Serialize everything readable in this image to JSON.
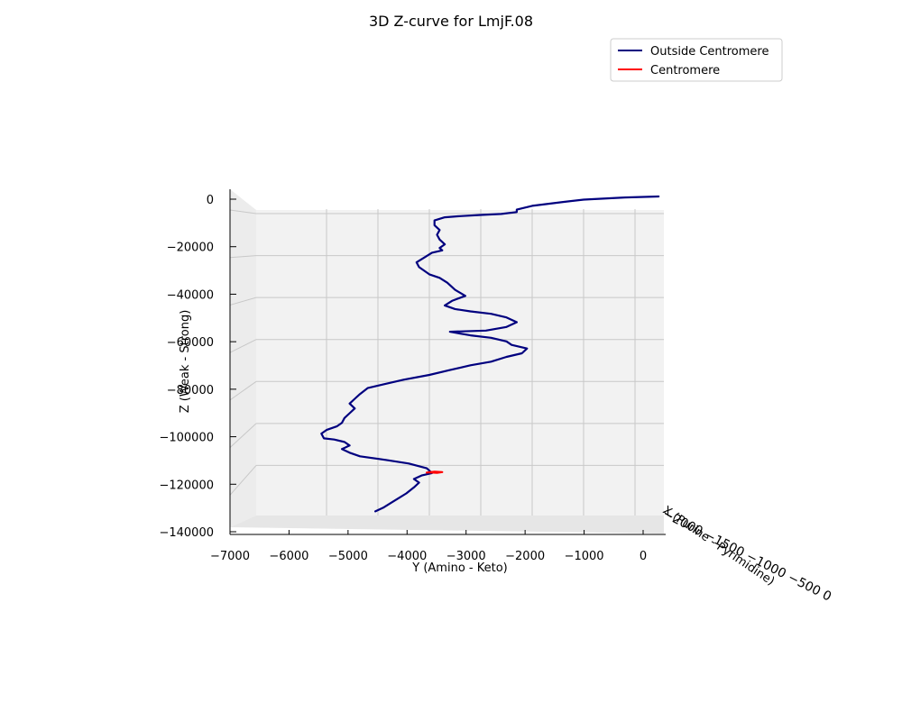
{
  "chart_data": {
    "type": "line",
    "projection": "3d",
    "title": "3D Z-curve for LmjF.08",
    "xlabel": "X (Purine - Pyrimidine)",
    "ylabel": "Y (Amino - Keto)",
    "zlabel": "Z (Weak - Strong)",
    "ylim": [
      -7000,
      500
    ],
    "zlim": [
      -140000,
      0
    ],
    "y_ticks": [
      "−7000",
      "−6000",
      "−5000",
      "−4000",
      "−3000",
      "−2000",
      "−1000",
      "0"
    ],
    "z_ticks": [
      "0",
      "−20000",
      "−40000",
      "−60000",
      "−80000",
      "−100000",
      "−120000",
      "−140000"
    ],
    "x_ticks_overlapping": "−2000 −1500 −1000 −500 0",
    "grid": true,
    "legend_position": "top-right",
    "legend": [
      {
        "name": "Outside Centromere",
        "color": "#00007f"
      },
      {
        "name": "Centromere",
        "color": "#ff0000"
      }
    ],
    "series": [
      {
        "name": "Outside Centromere",
        "color": "#00007f",
        "points_yz": [
          [
            460,
            0
          ],
          [
            -200,
            -400
          ],
          [
            -1000,
            -1300
          ],
          [
            -1400,
            -2300
          ],
          [
            -2000,
            -3900
          ],
          [
            -2300,
            -5500
          ],
          [
            -2300,
            -6500
          ],
          [
            -2600,
            -7300
          ],
          [
            -3000,
            -7700
          ],
          [
            -3400,
            -8200
          ],
          [
            -3700,
            -8700
          ],
          [
            -3900,
            -10000
          ],
          [
            -3900,
            -12000
          ],
          [
            -3800,
            -14000
          ],
          [
            -3850,
            -16000
          ],
          [
            -3800,
            -18000
          ],
          [
            -3700,
            -20000
          ],
          [
            -3800,
            -21500
          ],
          [
            -3750,
            -22500
          ],
          [
            -3950,
            -23500
          ],
          [
            -4100,
            -25500
          ],
          [
            -4250,
            -27500
          ],
          [
            -4200,
            -29500
          ],
          [
            -4100,
            -31000
          ],
          [
            -4000,
            -32500
          ],
          [
            -3800,
            -34000
          ],
          [
            -3650,
            -36000
          ],
          [
            -3500,
            -39000
          ],
          [
            -3300,
            -41500
          ],
          [
            -3550,
            -43500
          ],
          [
            -3700,
            -45500
          ],
          [
            -3500,
            -47000
          ],
          [
            -3200,
            -48000
          ],
          [
            -2800,
            -49000
          ],
          [
            -2500,
            -50500
          ],
          [
            -2300,
            -52500
          ],
          [
            -2500,
            -54500
          ],
          [
            -2900,
            -56000
          ],
          [
            -3600,
            -56500
          ],
          [
            -3200,
            -58000
          ],
          [
            -2800,
            -59000
          ],
          [
            -2500,
            -60500
          ],
          [
            -2400,
            -62000
          ],
          [
            -2100,
            -63500
          ],
          [
            -2200,
            -65500
          ],
          [
            -2500,
            -67000
          ],
          [
            -2800,
            -69000
          ],
          [
            -3200,
            -70500
          ],
          [
            -3600,
            -72500
          ],
          [
            -4000,
            -74500
          ],
          [
            -4500,
            -76500
          ],
          [
            -4900,
            -78500
          ],
          [
            -5200,
            -80000
          ],
          [
            -5350,
            -82500
          ],
          [
            -5450,
            -84500
          ],
          [
            -5550,
            -86500
          ],
          [
            -5450,
            -88500
          ],
          [
            -5550,
            -90500
          ],
          [
            -5650,
            -92500
          ],
          [
            -5700,
            -94500
          ],
          [
            -5800,
            -96000
          ],
          [
            -6000,
            -97500
          ],
          [
            -6100,
            -99000
          ],
          [
            -6050,
            -101000
          ],
          [
            -5850,
            -101500
          ],
          [
            -5650,
            -102500
          ],
          [
            -5550,
            -104000
          ],
          [
            -5700,
            -105500
          ],
          [
            -5550,
            -107000
          ],
          [
            -5350,
            -108500
          ],
          [
            -4850,
            -110000
          ],
          [
            -4400,
            -111500
          ],
          [
            -4050,
            -113500
          ],
          [
            -4000,
            -114500
          ],
          [
            -3950,
            -115500
          ],
          [
            -4150,
            -116500
          ],
          [
            -4300,
            -118000
          ],
          [
            -4200,
            -119500
          ],
          [
            -4300,
            -121500
          ],
          [
            -4450,
            -124000
          ],
          [
            -4600,
            -126000
          ],
          [
            -4750,
            -128000
          ],
          [
            -4900,
            -130000
          ],
          [
            -5050,
            -131500
          ]
        ]
      },
      {
        "name": "Centromere",
        "color": "#ff0000",
        "points_yz": [
          [
            -4050,
            -115300
          ],
          [
            -3900,
            -114900
          ],
          [
            -3750,
            -115100
          ],
          [
            -3850,
            -115400
          ],
          [
            -4000,
            -115250
          ]
        ]
      }
    ]
  }
}
